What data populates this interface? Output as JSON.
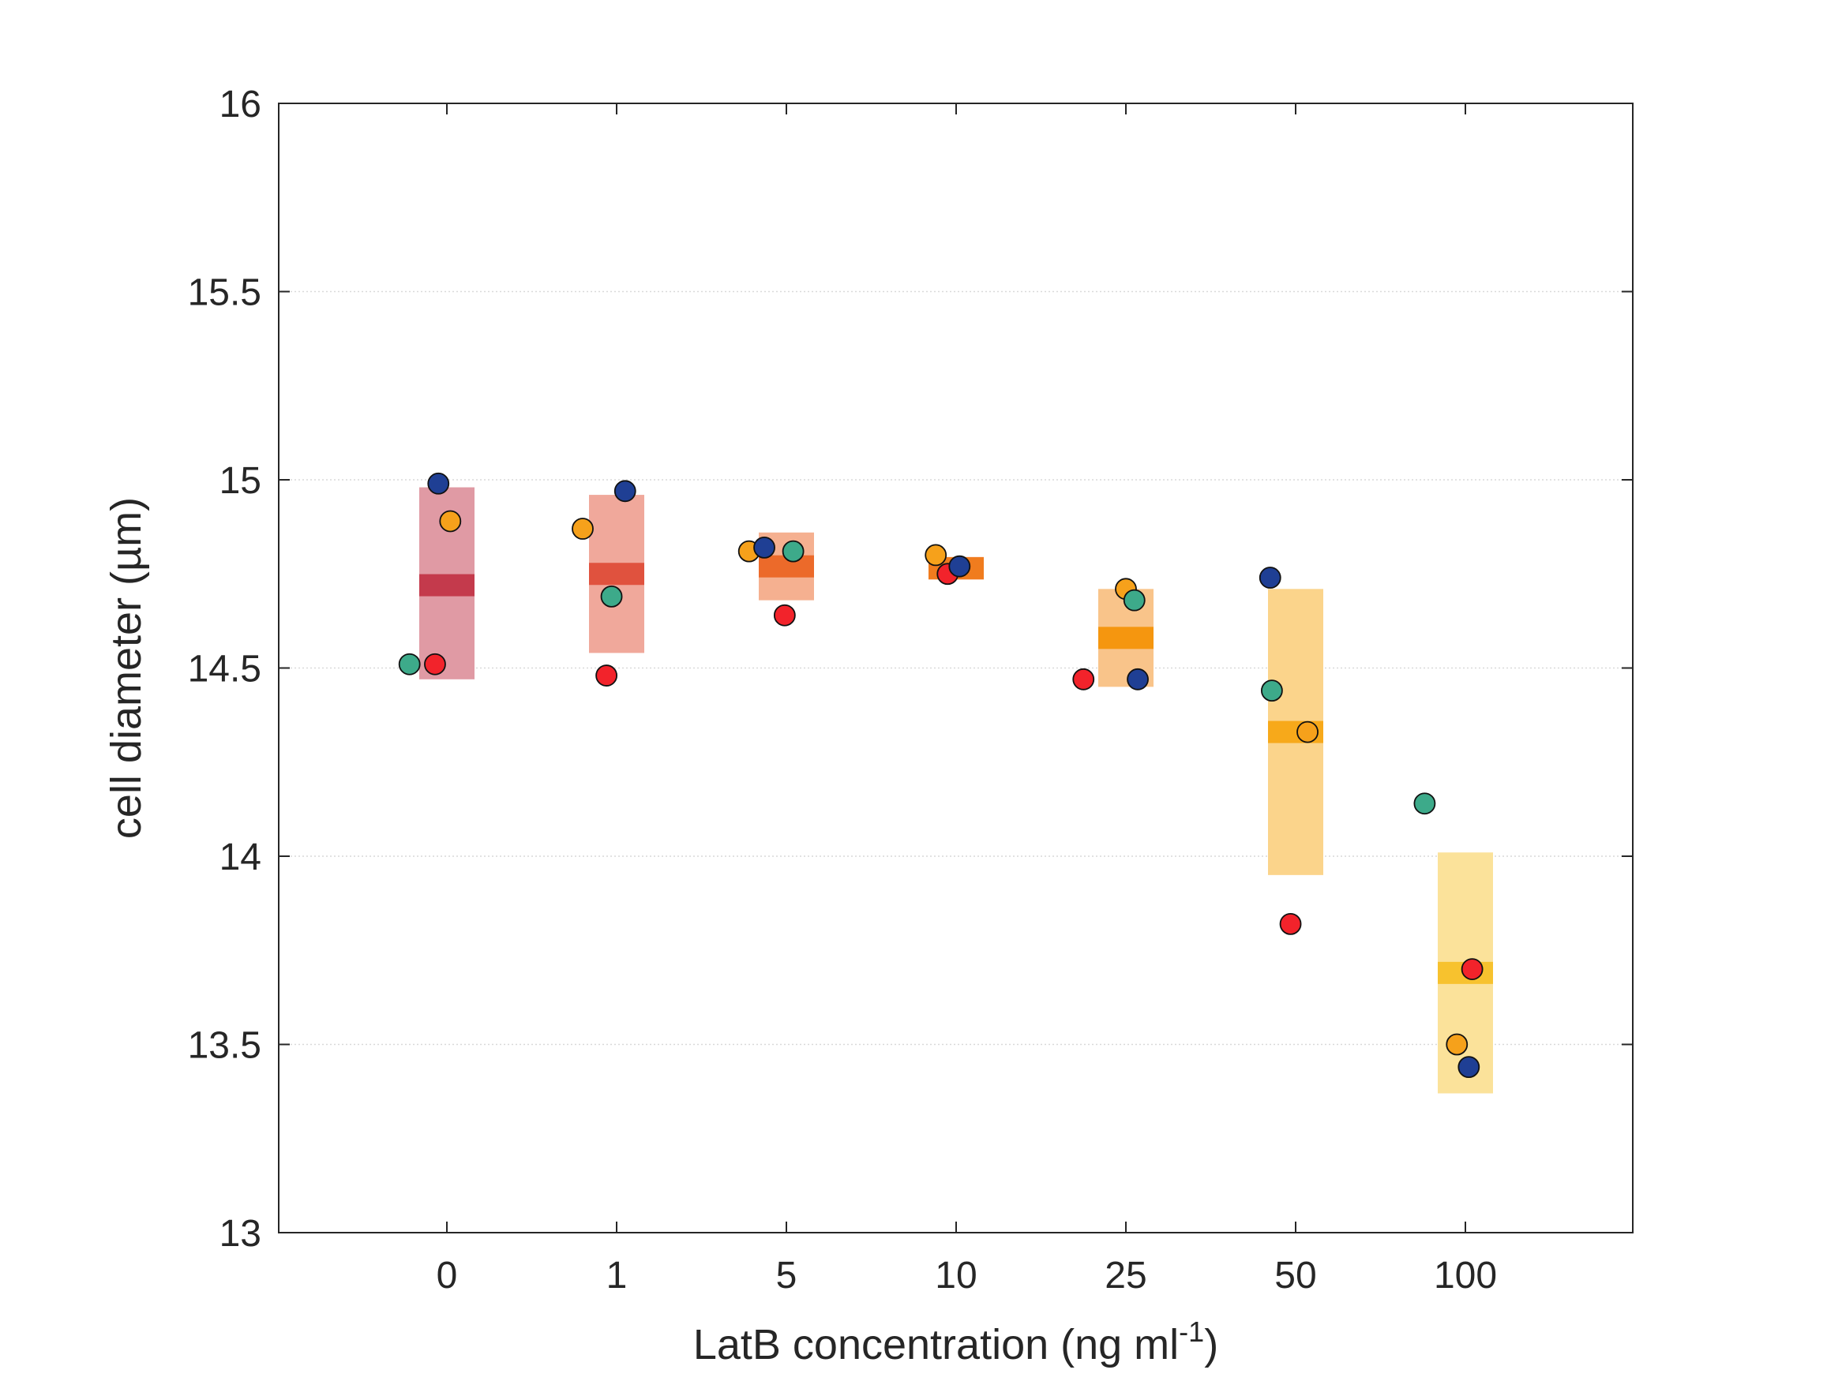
{
  "chart_data": {
    "type": "scatter",
    "title": "",
    "xlabel": "LatB concentration (ng ml",
    "xlabel_superscript": "-1",
    "xlabel_suffix": ")",
    "ylabel": "cell diameter (µm)",
    "ylim": [
      13,
      16
    ],
    "yticks": [
      "13",
      "13.5",
      "14",
      "14.5",
      "15",
      "15.5",
      "16"
    ],
    "categories": [
      "0",
      "1",
      "5",
      "10",
      "25",
      "50",
      "100"
    ],
    "grid": "horizontal dotted",
    "legend": "none",
    "series_colors": {
      "teal": "#3daa8a",
      "red": "#f2232b",
      "orange": "#f6a11b",
      "blue": "#1f3f94"
    },
    "groups": [
      {
        "category": "0",
        "mean": 14.72,
        "range": [
          14.47,
          14.98
        ],
        "box_color": "#e09aa4",
        "mean_color": "#c43a4c",
        "points": [
          {
            "series": "teal",
            "value": 14.51,
            "offset": -0.22
          },
          {
            "series": "red",
            "value": 14.51,
            "offset": -0.07
          },
          {
            "series": "blue",
            "value": 14.99,
            "offset": -0.05
          },
          {
            "series": "orange",
            "value": 14.89,
            "offset": 0.02
          }
        ]
      },
      {
        "category": "1",
        "mean": 14.75,
        "range": [
          14.54,
          14.96
        ],
        "box_color": "#f0a89b",
        "mean_color": "#e0523e",
        "points": [
          {
            "series": "orange",
            "value": 14.87,
            "offset": -0.2
          },
          {
            "series": "red",
            "value": 14.48,
            "offset": -0.06
          },
          {
            "series": "teal",
            "value": 14.69,
            "offset": -0.03
          },
          {
            "series": "blue",
            "value": 14.97,
            "offset": 0.05
          }
        ]
      },
      {
        "category": "5",
        "mean": 14.77,
        "range": [
          14.68,
          14.86
        ],
        "box_color": "#f5b090",
        "mean_color": "#ec6a2a",
        "points": [
          {
            "series": "orange",
            "value": 14.81,
            "offset": -0.22
          },
          {
            "series": "blue",
            "value": 14.82,
            "offset": -0.13
          },
          {
            "series": "red",
            "value": 14.64,
            "offset": -0.01
          },
          {
            "series": "teal",
            "value": 14.81,
            "offset": 0.04
          }
        ]
      },
      {
        "category": "10",
        "mean": 14.765,
        "range": [
          14.735,
          14.795
        ],
        "box_color": "#f6a374",
        "mean_color": "#f07c1e",
        "points": [
          {
            "series": "orange",
            "value": 14.8,
            "offset": -0.12
          },
          {
            "series": "red",
            "value": 14.75,
            "offset": -0.05
          },
          {
            "series": "blue",
            "value": 14.77,
            "offset": 0.02
          }
        ]
      },
      {
        "category": "25",
        "mean": 14.58,
        "range": [
          14.45,
          14.71
        ],
        "box_color": "#f9c48a",
        "mean_color": "#f5960f",
        "points": [
          {
            "series": "red",
            "value": 14.47,
            "offset": -0.25
          },
          {
            "series": "orange",
            "value": 14.71,
            "offset": 0.0
          },
          {
            "series": "teal",
            "value": 14.68,
            "offset": 0.05
          },
          {
            "series": "blue",
            "value": 14.47,
            "offset": 0.07
          }
        ]
      },
      {
        "category": "50",
        "mean": 14.33,
        "range": [
          13.95,
          14.71
        ],
        "box_color": "#fbd48b",
        "mean_color": "#f7a91a",
        "points": [
          {
            "series": "blue",
            "value": 14.74,
            "offset": -0.15
          },
          {
            "series": "teal",
            "value": 14.44,
            "offset": -0.14
          },
          {
            "series": "red",
            "value": 13.82,
            "offset": -0.03
          },
          {
            "series": "orange",
            "value": 14.33,
            "offset": 0.07
          }
        ]
      },
      {
        "category": "100",
        "mean": 13.69,
        "range": [
          13.37,
          14.01
        ],
        "box_color": "#fbe29a",
        "mean_color": "#f7c22e",
        "points": [
          {
            "series": "teal",
            "value": 14.14,
            "offset": -0.24
          },
          {
            "series": "orange",
            "value": 13.5,
            "offset": -0.05
          },
          {
            "series": "blue",
            "value": 13.44,
            "offset": 0.02
          },
          {
            "series": "red",
            "value": 13.7,
            "offset": 0.04
          }
        ]
      }
    ]
  }
}
